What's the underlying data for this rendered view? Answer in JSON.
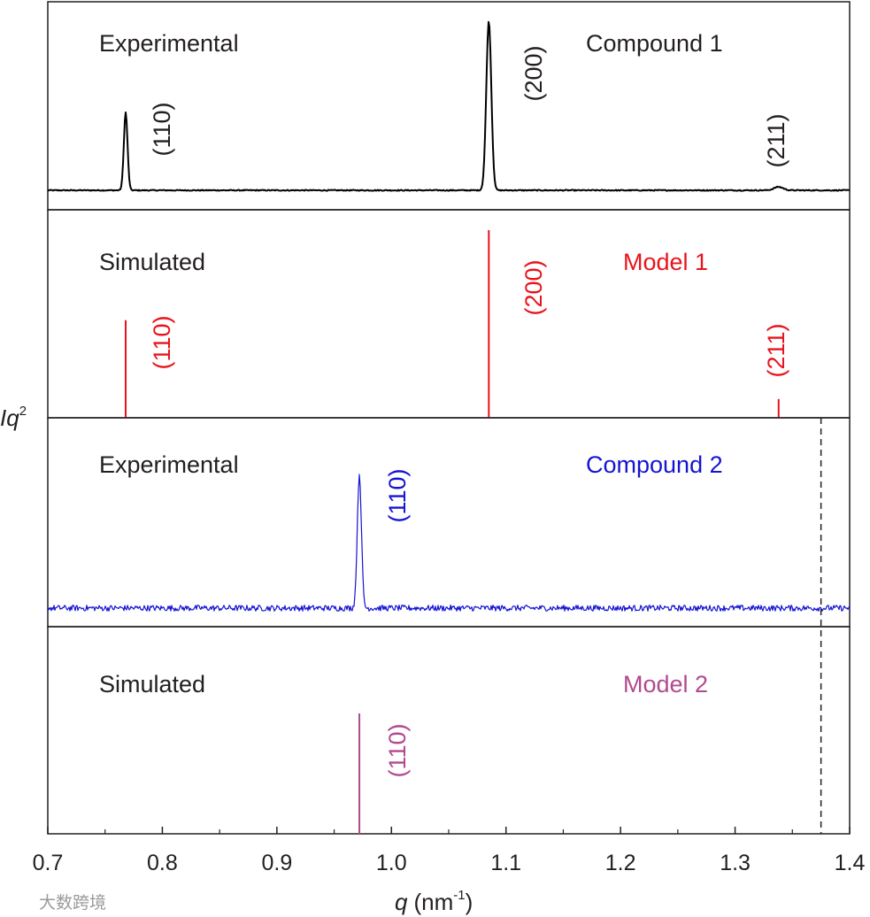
{
  "chart_data": {
    "type": "line",
    "title": "",
    "xlabel": "q (nm⁻¹)",
    "xlabel_var": "q",
    "xlabel_unit_prefix": "(nm",
    "xlabel_unit_exp": "-1",
    "xlabel_unit_suffix": ")",
    "ylabel": "Iq²",
    "ylabel_base": "Iq",
    "ylabel_exp": "2",
    "xlim": [
      0.7,
      1.4
    ],
    "xticks": [
      0.7,
      0.8,
      0.9,
      1.0,
      1.1,
      1.2,
      1.3,
      1.4
    ],
    "xtick_labels": [
      "0.7",
      "0.8",
      "0.9",
      "1.0",
      "1.1",
      "1.2",
      "1.3",
      "1.4"
    ],
    "reference_line": {
      "q": 1.375,
      "style": "dashed",
      "panels": [
        "Compound 2 (Experimental)",
        "Model 2 (Simulated)"
      ]
    },
    "panels": [
      {
        "kind": "experimental",
        "label": "Experimental",
        "name": "Compound 1",
        "color": "#000000",
        "label_color": "#231f20",
        "baseline": 0.02,
        "peaks": [
          {
            "hkl": "(110)",
            "q": 0.768,
            "height": 0.46,
            "width": 0.0016
          },
          {
            "hkl": "(200)",
            "q": 1.085,
            "height": 1.0,
            "width": 0.0022
          },
          {
            "hkl": "(211)",
            "q": 1.338,
            "height": 0.02,
            "width": 0.004
          }
        ],
        "noise": 0.003
      },
      {
        "kind": "simulated",
        "label": "Simulated",
        "name": "Model 1",
        "color": "#e8141c",
        "label_color": "#e8141c",
        "peaks": [
          {
            "hkl": "(110)",
            "q": 0.768,
            "height": 0.52
          },
          {
            "hkl": "(200)",
            "q": 1.085,
            "height": 1.0
          },
          {
            "hkl": "(211)",
            "q": 1.338,
            "height": 0.1
          }
        ]
      },
      {
        "kind": "experimental",
        "label": "Experimental",
        "name": "Compound 2",
        "color": "#1414d2",
        "label_color": "#1414d2",
        "baseline": 0.12,
        "peaks": [
          {
            "hkl": "(110)",
            "q": 0.972,
            "height": 0.9,
            "width": 0.0018
          }
        ],
        "noise": 0.02
      },
      {
        "kind": "simulated",
        "label": "Simulated",
        "name": "Model 2",
        "color": "#b1498f",
        "label_color": "#b1498f",
        "peaks": [
          {
            "hkl": "(110)",
            "q": 0.972,
            "height": 0.8
          }
        ]
      }
    ]
  },
  "watermark": "大数跨境"
}
